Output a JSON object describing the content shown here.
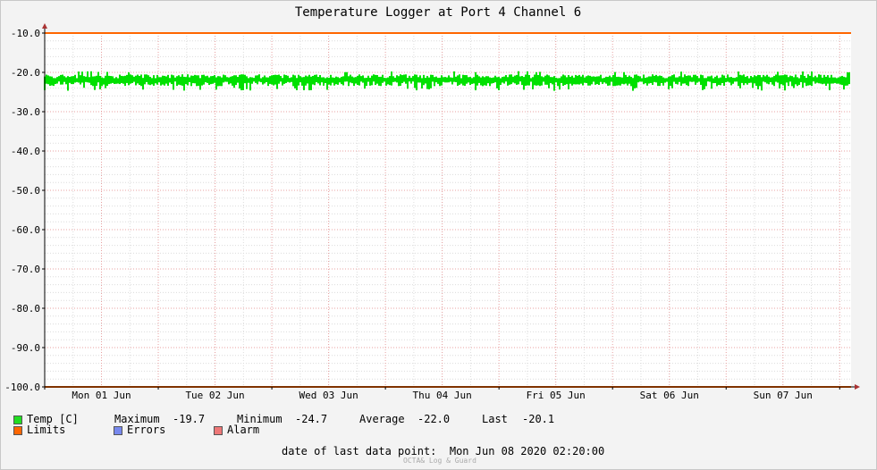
{
  "chart_data": {
    "type": "line",
    "title": "Temperature Logger at Port 4 Channel 6",
    "ylim": [
      -100.0,
      -10.0
    ],
    "y_ticks": [
      "-10.0",
      "-20.0",
      "-30.0",
      "-40.0",
      "-50.0",
      "-60.0",
      "-70.0",
      "-80.0",
      "-90.0",
      "-100.0"
    ],
    "x_labels": [
      "Mon 01 Jun",
      "Tue 02 Jun",
      "Wed 03 Jun",
      "Thu 04 Jun",
      "Fri 05 Jun",
      "Sat 06 Jun",
      "Sun 07 Jun"
    ],
    "x_range_days": [
      0,
      7.1
    ],
    "grid": true,
    "series": [
      {
        "name": "Temp [C]",
        "color": "#00e000",
        "band_min": -24.7,
        "band_max": -19.7,
        "typical": [
          -23.5,
          -20.5
        ]
      },
      {
        "name": "Limits",
        "color": "#ff6600",
        "values": [
          -10.0,
          -100.0
        ]
      }
    ]
  },
  "legend": {
    "temp_label": "Temp [C]",
    "limits_label": "Limits",
    "errors_label": "Errors",
    "alarm_label": "Alarm",
    "maximum_label": "Maximum",
    "maximum_value": "-19.7",
    "minimum_label": "Minimum",
    "minimum_value": "-24.7",
    "average_label": "Average",
    "average_value": "-22.0",
    "last_label": "Last",
    "last_value": "-20.1",
    "colors": {
      "temp": "#22dd22",
      "limits": "#ff6600",
      "errors": "#7788ee",
      "alarm": "#ee7777"
    }
  },
  "footer": {
    "last_point": "date of last data point:  Mon Jun 08 2020 02:20:00",
    "credit": "OCTA& Log & Guard"
  }
}
